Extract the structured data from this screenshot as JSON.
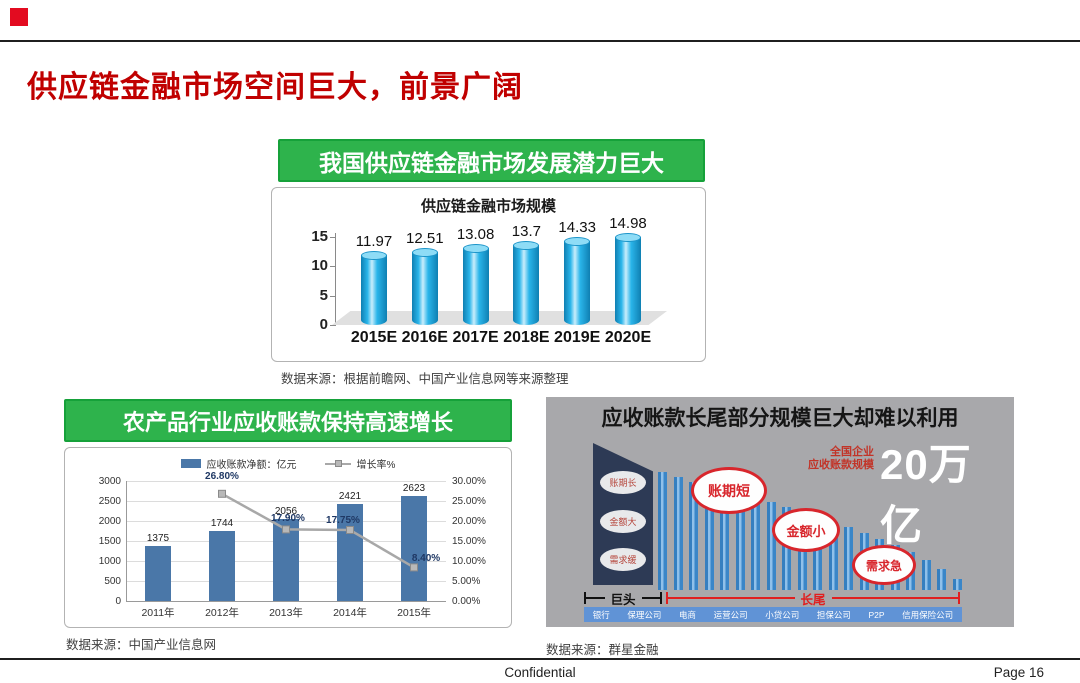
{
  "slide": {
    "title": "供应链金融市场空间巨大，前景广阔",
    "footer": {
      "confidential": "Confidential",
      "page": "Page 16"
    }
  },
  "colors": {
    "title_red": "#c00000",
    "corner_red": "#e30b20",
    "header_green": "#2eb34c",
    "cylinder_blue": "#29abe2",
    "bar_steel_blue": "#4a77a8",
    "line_gray": "#a8a8a8",
    "growth_label_navy": "#1f3864",
    "panel_gray": "#a8a8ab",
    "wedge_navy": "#2d3a55",
    "tail_blue": "#3e8ed0",
    "accent_red": "#d8262c",
    "banner_blue": "#6093d6"
  },
  "top_panel": {
    "header": "我国供应链金融市场发展潜力巨大",
    "source": "数据来源：根据前瞻网、中国产业信息网等来源整理"
  },
  "left_panel": {
    "header": "农产品行业应收账款保持高速增长",
    "source": "数据来源：中国产业信息网"
  },
  "right_panel": {
    "title": "应收账款长尾部分规模巨大却难以利用",
    "caption_small": [
      "全国企业",
      "应收账款规模"
    ],
    "caption_big": "20万亿",
    "wedge_labels": [
      "账期长",
      "金额大",
      "需求缓"
    ],
    "bubble_labels": [
      "账期短",
      "金额小",
      "需求急"
    ],
    "segment_left": "巨头",
    "segment_right": "长尾",
    "banner_labels": [
      "银行",
      "保理公司",
      "电商",
      "运营公司",
      "小贷公司",
      "担保公司",
      "P2P",
      "信用保险公司"
    ],
    "source": "数据来源：群星金融"
  },
  "chart_data": [
    {
      "type": "bar",
      "title": "供应链金融市场规模",
      "categories": [
        "2015E",
        "2016E",
        "2017E",
        "2018E",
        "2019E",
        "2020E"
      ],
      "values": [
        11.97,
        12.51,
        13.08,
        13.7,
        14.33,
        14.98
      ],
      "value_labels": [
        "11.97",
        "12.51",
        "13.08",
        "13.7",
        "14.33",
        "14.98"
      ],
      "ylim": [
        0,
        15
      ],
      "yticks": [
        "15",
        "10",
        "5",
        "0"
      ],
      "bar_style": "3d-cylinder",
      "grid": false,
      "legend_position": "none"
    },
    {
      "type": "combo",
      "categories": [
        "2011年",
        "2012年",
        "2013年",
        "2014年",
        "2015年"
      ],
      "series": [
        {
          "name": "应收账款净额：亿元",
          "type": "bar",
          "values": [
            1375,
            1744,
            2056,
            2421,
            2623
          ],
          "value_labels": [
            "1375",
            "1744",
            "2056",
            "2421",
            "2623"
          ]
        },
        {
          "name": "增长率%",
          "type": "line",
          "values": [
            null,
            26.8,
            17.9,
            17.75,
            8.4
          ],
          "value_labels": [
            "",
            "26.80%",
            "17.90%",
            "17.75%",
            "8.40%"
          ]
        }
      ],
      "left_axis": {
        "min": 0,
        "max": 3000,
        "step": 500,
        "tick_labels": [
          "3000",
          "2500",
          "2000",
          "1500",
          "1000",
          "500",
          "0"
        ]
      },
      "right_axis": {
        "min": 0,
        "max": 30,
        "step": 5,
        "tick_labels": [
          "30.00%",
          "25.00%",
          "20.00%",
          "15.00%",
          "10.00%",
          "5.00%",
          "0.00%"
        ]
      },
      "grid": true,
      "legend_position": "top"
    },
    {
      "type": "bar",
      "name": "long-tail-decorative",
      "relative_heights": [
        118,
        113,
        108,
        104,
        100,
        96,
        92,
        88,
        83,
        78,
        73,
        68,
        63,
        57,
        51,
        45,
        38,
        30,
        21,
        11
      ]
    }
  ]
}
